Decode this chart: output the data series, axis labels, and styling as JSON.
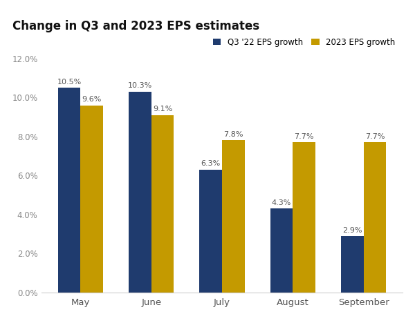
{
  "title": "Change in Q3 and 2023 EPS estimates",
  "categories": [
    "May",
    "June",
    "July",
    "August",
    "September"
  ],
  "q3_values": [
    10.5,
    10.3,
    6.3,
    4.3,
    2.9
  ],
  "y2023_values": [
    9.6,
    9.1,
    7.8,
    7.7,
    7.7
  ],
  "q3_color": "#1F3B6E",
  "y2023_color": "#C49A00",
  "ylim": [
    0,
    12.0
  ],
  "yticks": [
    0,
    2,
    4,
    6,
    8,
    10,
    12
  ],
  "ytick_labels": [
    "0.0%",
    "2.0%",
    "4.0%",
    "6.0%",
    "8.0%",
    "10.0%",
    "12.0%"
  ],
  "legend_q3_label": "Q3 '22 EPS growth",
  "legend_2023_label": "2023 EPS growth",
  "bar_width": 0.32,
  "title_fontsize": 12,
  "label_fontsize": 8,
  "tick_fontsize": 8.5,
  "legend_fontsize": 8.5,
  "label_color": "#555555",
  "tick_color": "#888888",
  "background_color": "#ffffff"
}
